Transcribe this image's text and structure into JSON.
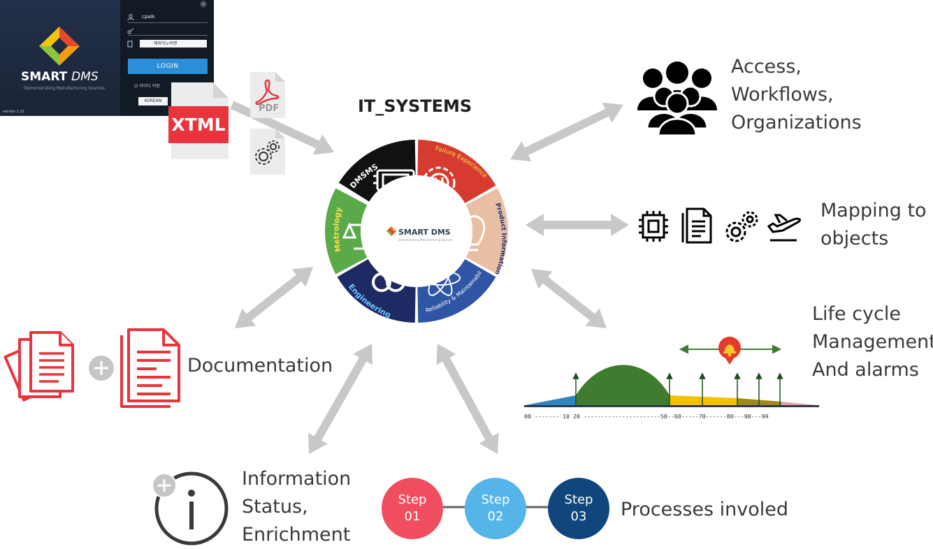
{
  "login_screen": {
    "brand_bold": "SMART",
    "brand_light": "DMS",
    "tagline": "Demonstrating Manufacturing Sources",
    "username": "cpalk",
    "dropdown_value": "해외이노버랜",
    "login_button": "LOGIN",
    "remember_label": "아이디 저장",
    "language_button": "KOREAN",
    "version": "version 1.21",
    "colors": {
      "login_button": "#2a8fd8",
      "background": "#1b2737"
    }
  },
  "inputs": {
    "xtml_label": "XTML",
    "pdf_label": "PDF",
    "icons": [
      "xtml-file-icon",
      "pdf-file-icon",
      "gear-file-icon"
    ]
  },
  "center": {
    "title": "IT_SYSTEMS",
    "logo_text": "SMART DMS",
    "logo_sub": "Demonstrating Manufacturing Sources",
    "segments": [
      {
        "label": "DMSMS",
        "color": "#111111",
        "icon": "chip-icon"
      },
      {
        "label": "Failure Experience",
        "color": "#d63b2f",
        "icon": "gear-flask-icon"
      },
      {
        "label": "Product Information",
        "color": "#e8bfa4",
        "icon": "lightbulb-icon"
      },
      {
        "label": "Reliability & Maintainability",
        "color": "#2f55a4",
        "icon": "atom-icon"
      },
      {
        "label": "Engineering",
        "color": "#1e2a63",
        "icon": "biohazard-icon"
      },
      {
        "label": "Metrology",
        "color": "#5aaa4a",
        "icon": "balance-scale-icon"
      }
    ]
  },
  "access": {
    "text": "Access,\nWorkflows,\nOrganizations",
    "icon": "people-group-icon"
  },
  "mapping": {
    "text": "Mapping to\nobjects",
    "icons": [
      "chip-icon",
      "document-icon",
      "gears-icon",
      "airplane-icon"
    ]
  },
  "lifecycle": {
    "text": "Life cycle\nManagement\nAnd alarms",
    "axis_label": "00 ------- 10  20 ----------------------50--60-----70------80---90---99",
    "icon": "alarm-bell-icon",
    "colors": {
      "blue": "#2e86c1",
      "green": "#3f7c2f",
      "yellow": "#f2c200",
      "olive": "#a08a1e",
      "pink": "#e9a0a6"
    }
  },
  "documentation": {
    "text": "Documentation",
    "icons": [
      "documents-stack-icon",
      "plus-icon",
      "document-icon"
    ],
    "color": "#e8343d"
  },
  "information": {
    "text": "Information\nStatus,\nEnrichment",
    "icons": [
      "plus-icon",
      "info-icon"
    ]
  },
  "processes": {
    "text": "Processes involed",
    "steps": [
      {
        "label": "Step\n01",
        "color": "#f04e5e"
      },
      {
        "label": "Step\n02",
        "color": "#55b5e8"
      },
      {
        "label": "Step\n03",
        "color": "#10467c"
      }
    ]
  }
}
